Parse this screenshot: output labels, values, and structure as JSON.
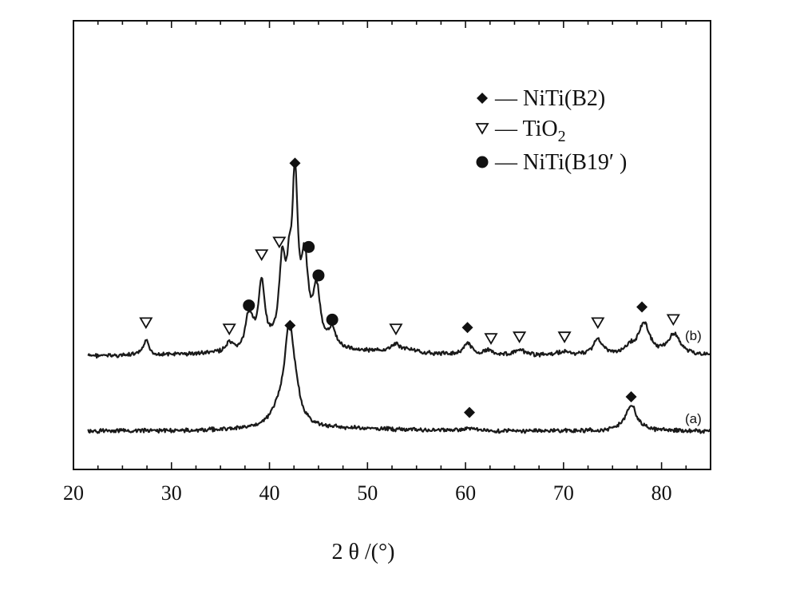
{
  "chart_data": {
    "type": "line",
    "xlabel": "2 θ /(°)",
    "xlim": [
      20,
      85
    ],
    "xticks": [
      "20",
      "30",
      "40",
      "50",
      "60",
      "70",
      "80"
    ],
    "y_axis_visible": false,
    "grid": false,
    "legend_position": "top-right",
    "legend": [
      {
        "marker": "diamond",
        "label": "— NiTi(B2)"
      },
      {
        "marker": "triangle-down",
        "label": "— TiO",
        "sub": "2"
      },
      {
        "marker": "circle",
        "label": "— NiTi(B19′ )"
      }
    ],
    "series": [
      {
        "name": "(b)",
        "baseline": 22,
        "peaks": [
          {
            "x": 27.4,
            "h": 18,
            "w": 0.35
          },
          {
            "x": 35.9,
            "h": 10,
            "w": 0.4
          },
          {
            "x": 37.8,
            "h": 32,
            "w": 0.35
          },
          {
            "x": 38.2,
            "h": 20,
            "w": 0.35
          },
          {
            "x": 39.2,
            "h": 82,
            "w": 0.4
          },
          {
            "x": 41.3,
            "h": 102,
            "w": 0.4
          },
          {
            "x": 42.0,
            "h": 60,
            "w": 0.3
          },
          {
            "x": 42.6,
            "h": 203,
            "w": 0.35
          },
          {
            "x": 43.6,
            "h": 100,
            "w": 0.4
          },
          {
            "x": 44.8,
            "h": 72,
            "w": 0.45
          },
          {
            "x": 46.4,
            "h": 22,
            "w": 0.45
          },
          {
            "x": 52.9,
            "h": 10,
            "w": 0.6
          },
          {
            "x": 54.3,
            "h": 4,
            "w": 0.6
          },
          {
            "x": 60.2,
            "h": 14,
            "w": 0.5
          },
          {
            "x": 62.4,
            "h": 6,
            "w": 0.5
          },
          {
            "x": 65.5,
            "h": 6,
            "w": 0.7
          },
          {
            "x": 70.0,
            "h": 4,
            "w": 0.8
          },
          {
            "x": 73.5,
            "h": 20,
            "w": 0.6
          },
          {
            "x": 76.8,
            "h": 8,
            "w": 0.6
          },
          {
            "x": 78.2,
            "h": 40,
            "w": 0.7
          },
          {
            "x": 81.3,
            "h": 26,
            "w": 0.8
          }
        ],
        "markers": [
          {
            "x": 27.4,
            "type": "triangle-down",
            "level": 36
          },
          {
            "x": 35.9,
            "type": "triangle-down",
            "level": 28
          },
          {
            "x": 37.9,
            "type": "circle",
            "level": 58
          },
          {
            "x": 39.2,
            "type": "triangle-down",
            "level": 122
          },
          {
            "x": 41.0,
            "type": "triangle-down",
            "level": 138
          },
          {
            "x": 42.6,
            "type": "diamond",
            "level": 238
          },
          {
            "x": 44.0,
            "type": "circle",
            "level": 132
          },
          {
            "x": 45.0,
            "type": "circle",
            "level": 96
          },
          {
            "x": 46.4,
            "type": "circle",
            "level": 40
          },
          {
            "x": 52.9,
            "type": "triangle-down",
            "level": 28
          },
          {
            "x": 60.2,
            "type": "diamond",
            "level": 30
          },
          {
            "x": 62.6,
            "type": "triangle-down",
            "level": 16
          },
          {
            "x": 65.5,
            "type": "triangle-down",
            "level": 18
          },
          {
            "x": 70.1,
            "type": "triangle-down",
            "level": 18
          },
          {
            "x": 73.5,
            "type": "triangle-down",
            "level": 36
          },
          {
            "x": 78.0,
            "type": "diamond",
            "level": 56
          },
          {
            "x": 81.2,
            "type": "triangle-down",
            "level": 40
          }
        ]
      },
      {
        "name": "(a)",
        "baseline": 0,
        "peaks": [
          {
            "x": 41.0,
            "h": 18,
            "w": 1.0
          },
          {
            "x": 42.0,
            "h": 100,
            "w": 0.55
          },
          {
            "x": 42.6,
            "h": 28,
            "w": 0.6
          },
          {
            "x": 60.5,
            "h": 3,
            "w": 0.8
          },
          {
            "x": 76.9,
            "h": 30,
            "w": 0.7
          }
        ],
        "markers": [
          {
            "x": 42.1,
            "type": "diamond",
            "level": 116
          },
          {
            "x": 60.4,
            "type": "diamond",
            "level": 16
          },
          {
            "x": 76.9,
            "type": "diamond",
            "level": 34
          }
        ]
      }
    ]
  }
}
